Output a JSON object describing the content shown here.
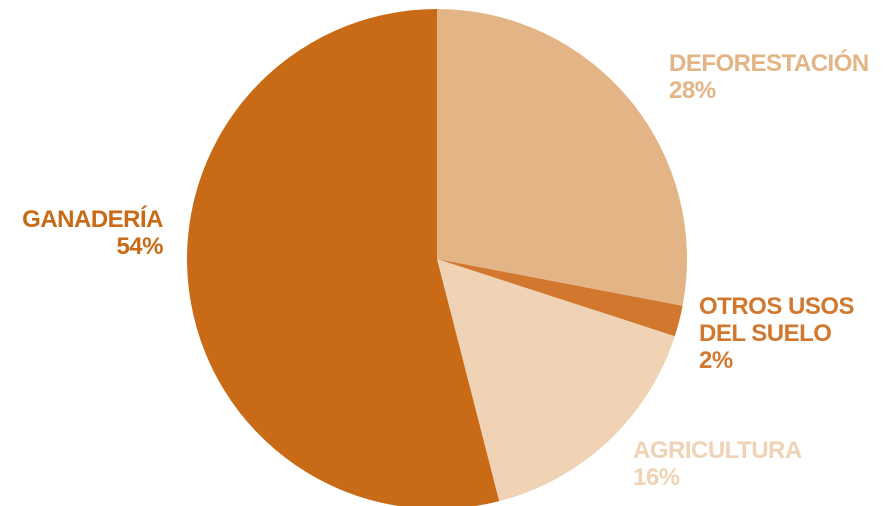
{
  "chart_data": {
    "type": "pie",
    "title": "",
    "slices": [
      {
        "label": "DEFORESTACIÓN",
        "label_lines": [
          "DEFORESTACIÓN"
        ],
        "value": 28,
        "value_label": "28%",
        "color": "#E3B486"
      },
      {
        "label": "OTROS USOS DEL SUELO",
        "label_lines": [
          "OTROS USOS",
          "DEL SUELO"
        ],
        "value": 2,
        "value_label": "2%",
        "color": "#D2782E"
      },
      {
        "label": "AGRICULTURA",
        "label_lines": [
          "AGRICULTURA"
        ],
        "value": 16,
        "value_label": "16%",
        "color": "#F0D2B4"
      },
      {
        "label": "GANADERÍA",
        "label_lines": [
          "GANADERÍA"
        ],
        "value": 54,
        "value_label": "54%",
        "color": "#C86A16"
      }
    ],
    "start_angle": "12 o'clock",
    "direction": "clockwise",
    "legend": "none (labels placed beside slices)"
  }
}
